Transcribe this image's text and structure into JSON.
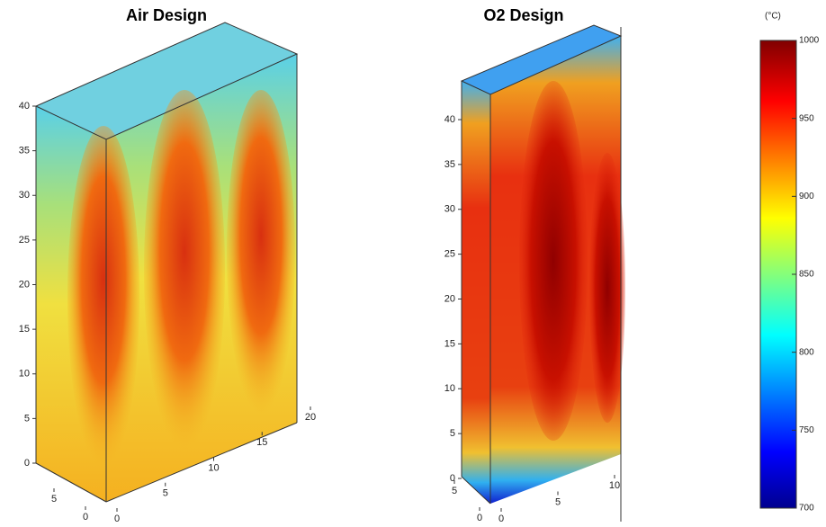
{
  "panels": [
    {
      "title": "Air Design",
      "z_ticks": [
        0,
        5,
        10,
        15,
        20,
        25,
        30,
        35,
        40
      ],
      "depth_ticks": [
        0,
        5
      ],
      "width_ticks": [
        0,
        5,
        10,
        15,
        20
      ]
    },
    {
      "title": "O2 Design",
      "z_ticks": [
        0,
        5,
        10,
        15,
        20,
        25,
        30,
        35,
        40
      ],
      "depth_ticks": [
        0,
        5
      ],
      "width_ticks": [
        0,
        5,
        10
      ]
    }
  ],
  "colorbar": {
    "unit": "(°C)",
    "ticks": [
      700,
      750,
      800,
      850,
      900,
      950,
      1000
    ]
  }
}
